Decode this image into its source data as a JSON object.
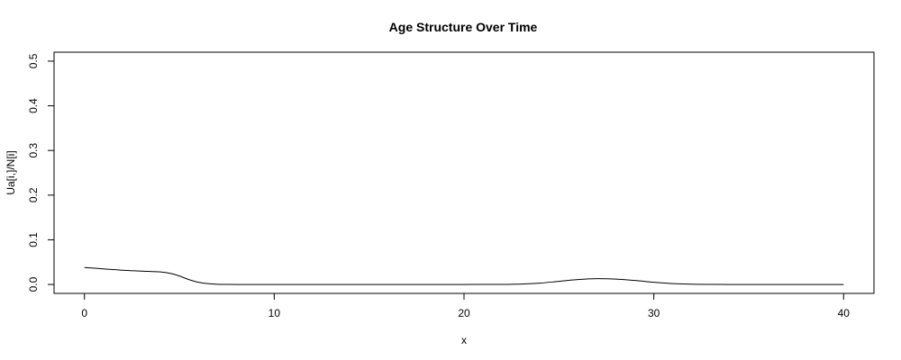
{
  "chart_data": {
    "type": "line",
    "title": "Age Structure Over Time",
    "xlabel": "x",
    "ylabel": "Ua[i,]/N[i]",
    "xlim": [
      -1.6,
      41.6
    ],
    "ylim": [
      -0.02,
      0.52
    ],
    "xticks": [
      0,
      10,
      20,
      30,
      40
    ],
    "yticks": [
      0.0,
      0.1,
      0.2,
      0.3,
      0.4,
      0.5
    ],
    "xtick_labels": [
      "0",
      "10",
      "20",
      "30",
      "40"
    ],
    "ytick_labels": [
      "0.0",
      "0.1",
      "0.2",
      "0.3",
      "0.4",
      "0.5"
    ],
    "grid": false,
    "series": [
      {
        "color": "#000000",
        "x": [
          0,
          1,
          2,
          3,
          4,
          4.5,
          5,
          5.5,
          6,
          6.5,
          7,
          7.5,
          8,
          9,
          10,
          12,
          15,
          18,
          20,
          22,
          23,
          24,
          25,
          26,
          27,
          28,
          29,
          30,
          31,
          32,
          33,
          34,
          36,
          38,
          40
        ],
        "y": [
          0.038,
          0.035,
          0.032,
          0.03,
          0.028,
          0.025,
          0.019,
          0.011,
          0.005,
          0.002,
          0.0005,
          0.0001,
          0.0,
          0.0,
          0.0,
          0.0,
          0.0,
          0.0,
          0.0,
          0.0002,
          0.001,
          0.003,
          0.007,
          0.011,
          0.013,
          0.012,
          0.009,
          0.005,
          0.002,
          0.0007,
          0.0002,
          0.0,
          0.0,
          0.0,
          0.0
        ]
      }
    ]
  }
}
